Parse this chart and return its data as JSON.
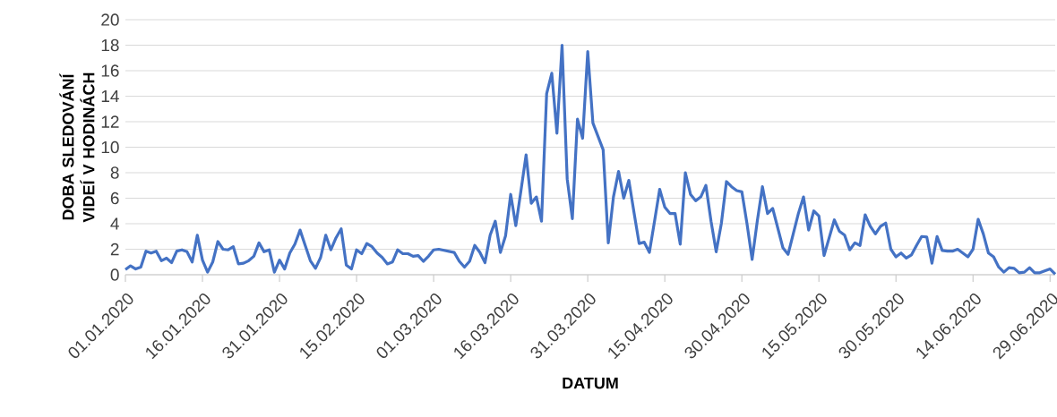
{
  "chart_data": {
    "type": "line",
    "xlabel": "DATUM",
    "ylabel": "DOBA SLEDOVÁNÍ VIDEÍ V HODINÁCH",
    "xlim": [
      "2020-01-01",
      "2020-06-30"
    ],
    "xticks": [
      {
        "value": "2020-01-01",
        "label": "01.01.2020"
      },
      {
        "value": "2020-01-16",
        "label": "16.01.2020"
      },
      {
        "value": "2020-01-31",
        "label": "31.01.2020"
      },
      {
        "value": "2020-02-15",
        "label": "15.02.2020"
      },
      {
        "value": "2020-03-01",
        "label": "01.03.2020"
      },
      {
        "value": "2020-03-16",
        "label": "16.03.2020"
      },
      {
        "value": "2020-03-31",
        "label": "31.03.2020"
      },
      {
        "value": "2020-04-15",
        "label": "15.04.2020"
      },
      {
        "value": "2020-04-30",
        "label": "30.04.2020"
      },
      {
        "value": "2020-05-15",
        "label": "15.05.2020"
      },
      {
        "value": "2020-05-30",
        "label": "30.05.2020"
      },
      {
        "value": "2020-06-14",
        "label": "14.06.2020"
      },
      {
        "value": "2020-06-29",
        "label": "29.06.2020"
      }
    ],
    "ylim": [
      0,
      20
    ],
    "yticks": [
      0,
      2,
      4,
      6,
      8,
      10,
      12,
      14,
      16,
      18,
      20
    ],
    "grid": "y",
    "marker": "none",
    "line_style": "solid",
    "series": [
      {
        "color": "#4472c4",
        "x": [
          "2020-01-01",
          "2020-01-02",
          "2020-01-03",
          "2020-01-04",
          "2020-01-05",
          "2020-01-06",
          "2020-01-07",
          "2020-01-08",
          "2020-01-09",
          "2020-01-10",
          "2020-01-11",
          "2020-01-12",
          "2020-01-13",
          "2020-01-14",
          "2020-01-15",
          "2020-01-16",
          "2020-01-17",
          "2020-01-18",
          "2020-01-19",
          "2020-01-20",
          "2020-01-21",
          "2020-01-22",
          "2020-01-23",
          "2020-01-24",
          "2020-01-25",
          "2020-01-26",
          "2020-01-27",
          "2020-01-28",
          "2020-01-29",
          "2020-01-30",
          "2020-01-31",
          "2020-02-01",
          "2020-02-02",
          "2020-02-03",
          "2020-02-04",
          "2020-02-05",
          "2020-02-06",
          "2020-02-07",
          "2020-02-08",
          "2020-02-09",
          "2020-02-10",
          "2020-02-11",
          "2020-02-12",
          "2020-02-13",
          "2020-02-14",
          "2020-02-15",
          "2020-02-16",
          "2020-02-17",
          "2020-02-18",
          "2020-02-19",
          "2020-02-20",
          "2020-02-21",
          "2020-02-22",
          "2020-02-23",
          "2020-02-24",
          "2020-02-25",
          "2020-02-26",
          "2020-02-27",
          "2020-02-28",
          "2020-02-29",
          "2020-03-01",
          "2020-03-02",
          "2020-03-05",
          "2020-03-06",
          "2020-03-07",
          "2020-03-08",
          "2020-03-09",
          "2020-03-10",
          "2020-03-11",
          "2020-03-12",
          "2020-03-13",
          "2020-03-14",
          "2020-03-15",
          "2020-03-16",
          "2020-03-17",
          "2020-03-18",
          "2020-03-19",
          "2020-03-20",
          "2020-03-21",
          "2020-03-22",
          "2020-03-23",
          "2020-03-24",
          "2020-03-25",
          "2020-03-26",
          "2020-03-27",
          "2020-03-28",
          "2020-03-29",
          "2020-03-30",
          "2020-03-31",
          "2020-04-01",
          "2020-04-03",
          "2020-04-04",
          "2020-04-05",
          "2020-04-06",
          "2020-04-07",
          "2020-04-08",
          "2020-04-09",
          "2020-04-10",
          "2020-04-11",
          "2020-04-12",
          "2020-04-13",
          "2020-04-14",
          "2020-04-15",
          "2020-04-16",
          "2020-04-17",
          "2020-04-18",
          "2020-04-19",
          "2020-04-20",
          "2020-04-21",
          "2020-04-22",
          "2020-04-23",
          "2020-04-24",
          "2020-04-25",
          "2020-04-26",
          "2020-04-27",
          "2020-04-28",
          "2020-04-29",
          "2020-04-30",
          "2020-05-01",
          "2020-05-02",
          "2020-05-03",
          "2020-05-04",
          "2020-05-05",
          "2020-05-06",
          "2020-05-07",
          "2020-05-08",
          "2020-05-09",
          "2020-05-10",
          "2020-05-11",
          "2020-05-12",
          "2020-05-13",
          "2020-05-14",
          "2020-05-15",
          "2020-05-16",
          "2020-05-17",
          "2020-05-18",
          "2020-05-19",
          "2020-05-20",
          "2020-05-21",
          "2020-05-22",
          "2020-05-23",
          "2020-05-24",
          "2020-05-25",
          "2020-05-26",
          "2020-05-27",
          "2020-05-28",
          "2020-05-29",
          "2020-05-30",
          "2020-05-31",
          "2020-06-01",
          "2020-06-02",
          "2020-06-03",
          "2020-06-04",
          "2020-06-05",
          "2020-06-06",
          "2020-06-07",
          "2020-06-08",
          "2020-06-09",
          "2020-06-10",
          "2020-06-11",
          "2020-06-12",
          "2020-06-13",
          "2020-06-14",
          "2020-06-15",
          "2020-06-16",
          "2020-06-17",
          "2020-06-18",
          "2020-06-19",
          "2020-06-20",
          "2020-06-21",
          "2020-06-22",
          "2020-06-23",
          "2020-06-24",
          "2020-06-25",
          "2020-06-26",
          "2020-06-27",
          "2020-06-28",
          "2020-06-29",
          "2020-06-30"
        ],
        "values": [
          0.4,
          0.7,
          0.45,
          0.6,
          1.85,
          1.7,
          1.85,
          1.1,
          1.3,
          0.95,
          1.85,
          1.95,
          1.8,
          1.0,
          3.1,
          1.15,
          0.2,
          1.0,
          2.6,
          2.0,
          1.95,
          2.2,
          0.85,
          0.9,
          1.1,
          1.45,
          2.5,
          1.8,
          1.95,
          0.2,
          1.15,
          0.45,
          1.7,
          2.4,
          3.5,
          2.3,
          1.1,
          0.5,
          1.35,
          3.1,
          1.95,
          2.9,
          3.6,
          0.75,
          0.45,
          1.95,
          1.65,
          2.45,
          2.2,
          1.7,
          1.35,
          0.85,
          1.0,
          1.95,
          1.65,
          1.65,
          1.45,
          1.5,
          1.05,
          1.45,
          1.95,
          2.0,
          1.75,
          1.05,
          0.6,
          1.05,
          2.3,
          1.75,
          0.95,
          3.1,
          4.2,
          1.75,
          3.05,
          6.3,
          3.85,
          6.6,
          9.4,
          5.6,
          6.1,
          4.2,
          14.2,
          15.8,
          11.1,
          18.0,
          7.5,
          4.4,
          12.2,
          10.7,
          17.5,
          11.9,
          9.8,
          2.5,
          6.1,
          8.1,
          6.0,
          7.4,
          4.9,
          2.45,
          2.55,
          1.75,
          4.2,
          6.7,
          5.3,
          4.8,
          4.8,
          2.4,
          8.0,
          6.3,
          5.8,
          6.1,
          7.0,
          4.2,
          1.8,
          4.0,
          7.3,
          6.9,
          6.6,
          6.5,
          4.0,
          1.2,
          4.2,
          6.9,
          4.8,
          5.2,
          3.65,
          2.1,
          1.6,
          3.2,
          4.8,
          6.1,
          3.5,
          5.0,
          4.6,
          1.5,
          2.9,
          4.3,
          3.4,
          3.1,
          1.95,
          2.5,
          2.3,
          4.7,
          3.8,
          3.2,
          3.8,
          4.05,
          2.0,
          1.4,
          1.7,
          1.3,
          1.55,
          2.3,
          3.0,
          2.95,
          0.9,
          3.0,
          1.9,
          1.85,
          1.85,
          2.0,
          1.7,
          1.4,
          2.0,
          4.35,
          3.2,
          1.7,
          1.4,
          0.6,
          0.2,
          0.55,
          0.5,
          0.15,
          0.2,
          0.55,
          0.15,
          0.15,
          0.3,
          0.45,
          0.05
        ]
      }
    ]
  }
}
